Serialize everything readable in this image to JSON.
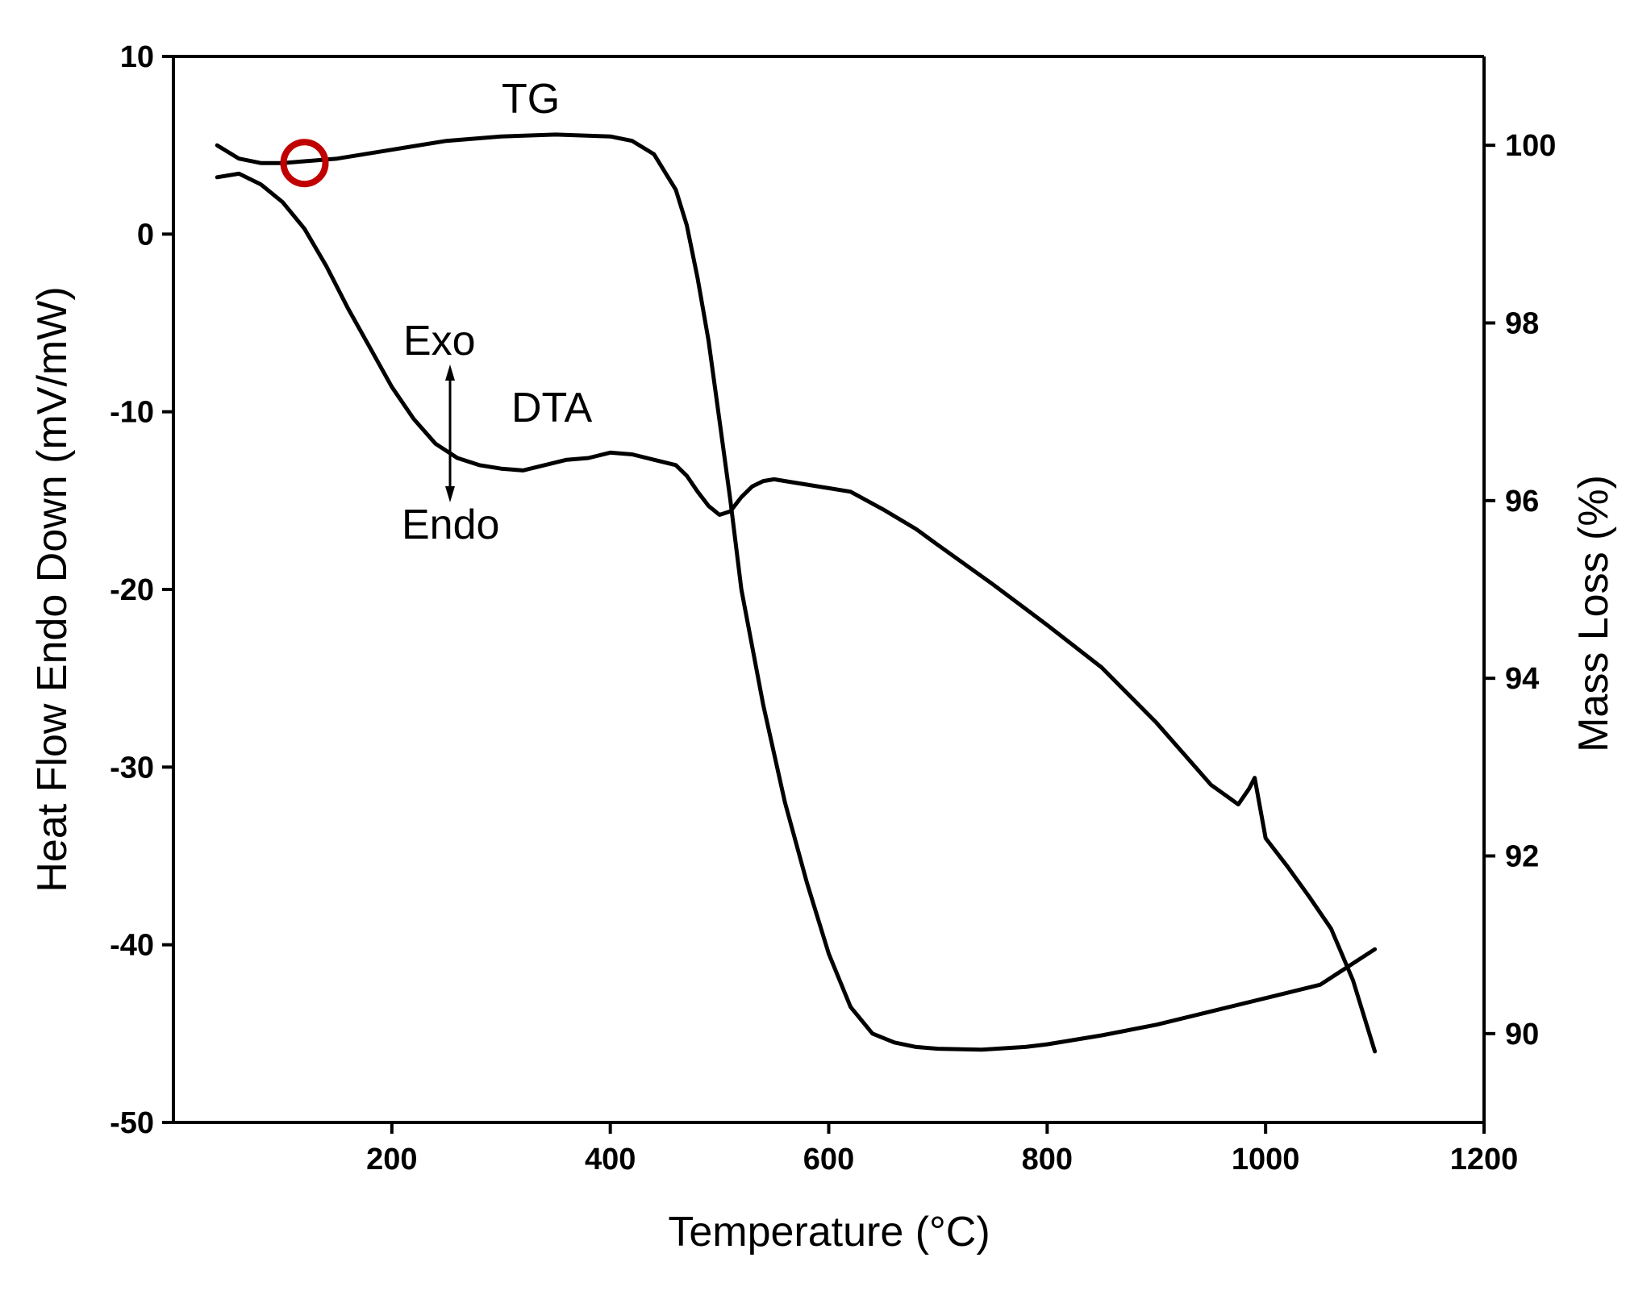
{
  "chart_data": {
    "type": "line",
    "title": "",
    "xlabel": "Temperature (°C)",
    "ylabel_left": "Heat Flow Endo Down (mV/mW)",
    "ylabel_right": "Mass Loss (%)",
    "xlim": [
      0,
      1200
    ],
    "ylim_left": [
      -50,
      10
    ],
    "ylim_right": [
      89,
      101
    ],
    "xticks": [
      200,
      400,
      600,
      800,
      1000,
      1200
    ],
    "yticks_left": [
      10,
      0,
      -10,
      -20,
      -30,
      -40,
      -50
    ],
    "yticks_right": [
      100,
      98,
      96,
      94,
      92,
      90
    ],
    "grid": false,
    "annotations": {
      "tg": "TG",
      "dta": "DTA",
      "exo": "Exo",
      "endo": "Endo"
    },
    "marker": {
      "x": 120,
      "y_right": 99.8,
      "color": "#c00000"
    },
    "series": [
      {
        "name": "TG",
        "axis": "right",
        "x": [
          40,
          60,
          80,
          100,
          120,
          150,
          200,
          250,
          300,
          350,
          400,
          420,
          440,
          460,
          470,
          480,
          490,
          500,
          510,
          520,
          540,
          560,
          580,
          600,
          620,
          640,
          660,
          680,
          700,
          740,
          780,
          800,
          850,
          900,
          950,
          1000,
          1050,
          1100
        ],
        "y": [
          100.0,
          99.85,
          99.8,
          99.8,
          99.82,
          99.85,
          99.95,
          100.05,
          100.1,
          100.12,
          100.1,
          100.05,
          99.9,
          99.5,
          99.1,
          98.5,
          97.8,
          96.9,
          96.0,
          95.0,
          93.7,
          92.6,
          91.7,
          90.9,
          90.3,
          90.0,
          89.9,
          89.85,
          89.83,
          89.82,
          89.85,
          89.88,
          89.98,
          90.1,
          90.25,
          90.4,
          90.55,
          90.95
        ]
      },
      {
        "name": "DTA",
        "axis": "left",
        "x": [
          40,
          60,
          80,
          100,
          120,
          140,
          160,
          180,
          200,
          220,
          240,
          260,
          280,
          300,
          320,
          340,
          360,
          380,
          400,
          420,
          440,
          460,
          470,
          480,
          490,
          500,
          510,
          520,
          530,
          540,
          550,
          560,
          580,
          600,
          620,
          650,
          680,
          700,
          750,
          800,
          850,
          900,
          950,
          975,
          985,
          990,
          1000,
          1020,
          1040,
          1060,
          1080,
          1100
        ],
        "y": [
          3.2,
          3.4,
          2.8,
          1.8,
          0.3,
          -1.8,
          -4.2,
          -6.4,
          -8.6,
          -10.4,
          -11.8,
          -12.6,
          -13.0,
          -13.2,
          -13.3,
          -13.0,
          -12.7,
          -12.6,
          -12.3,
          -12.4,
          -12.7,
          -13.0,
          -13.6,
          -14.5,
          -15.3,
          -15.8,
          -15.6,
          -14.8,
          -14.2,
          -13.9,
          -13.8,
          -13.9,
          -14.1,
          -14.3,
          -14.5,
          -15.5,
          -16.6,
          -17.5,
          -19.7,
          -22.0,
          -24.4,
          -27.5,
          -31.0,
          -32.1,
          -31.2,
          -30.6,
          -34.0,
          -35.6,
          -37.3,
          -39.1,
          -42.0,
          -46.0
        ]
      }
    ]
  }
}
